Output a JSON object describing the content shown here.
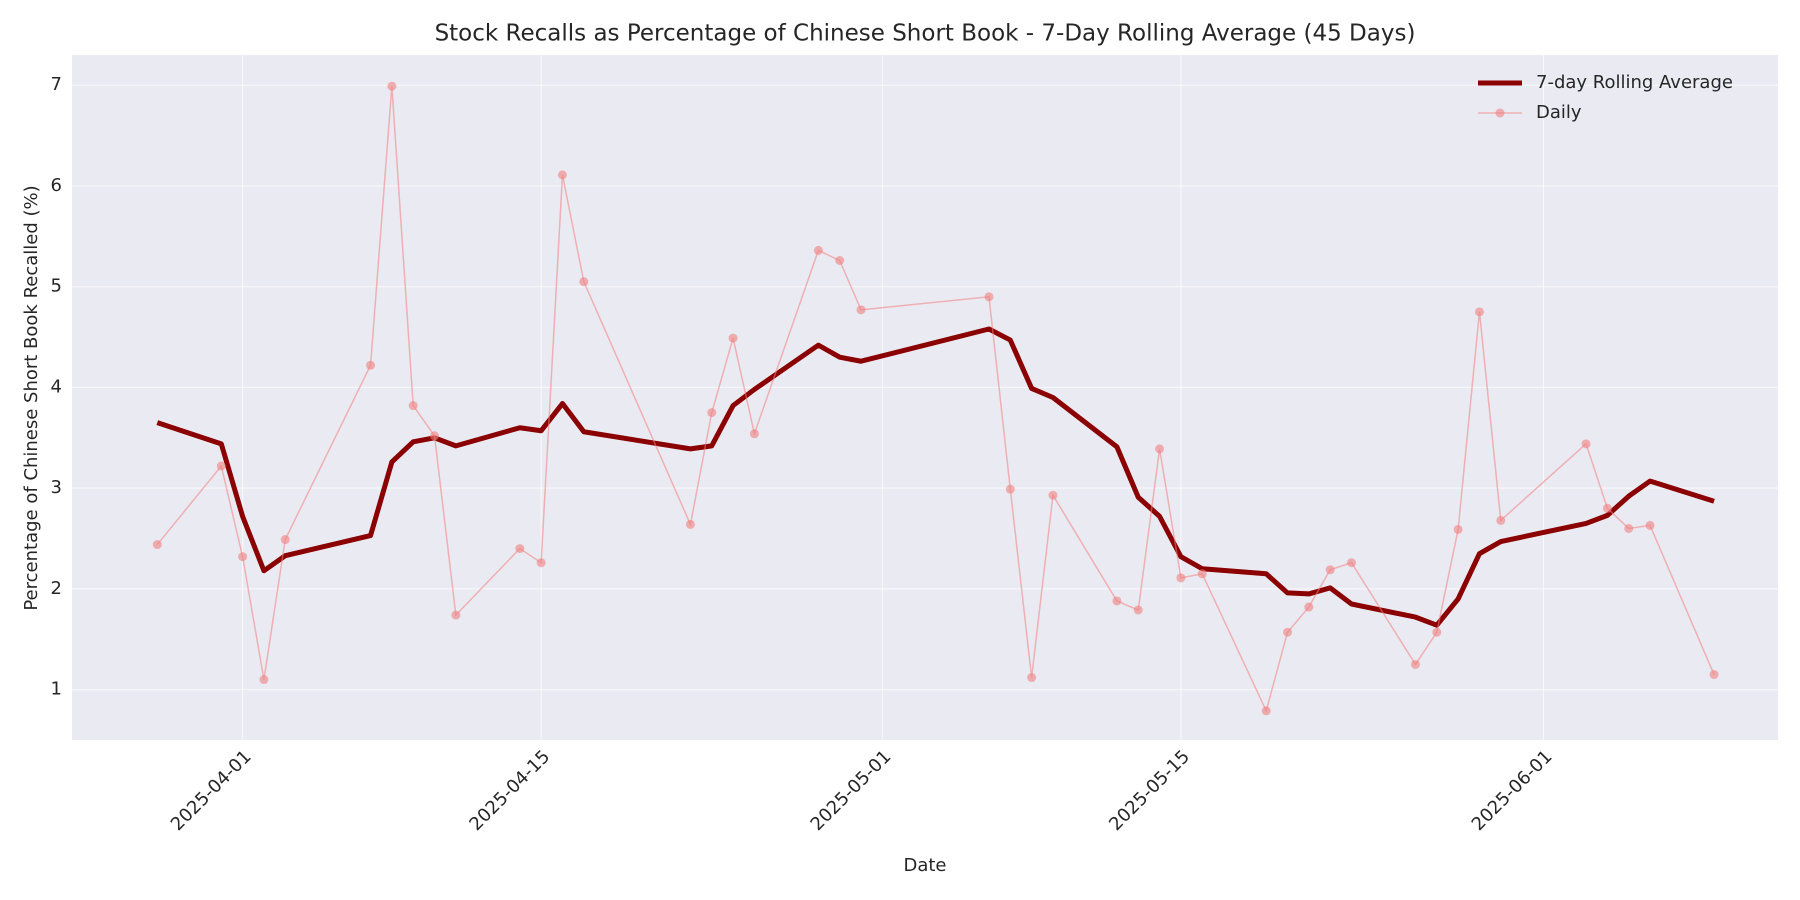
{
  "chart_data": {
    "type": "line",
    "title": "Stock Recalls as Percentage of Chinese Short Book - 7-Day Rolling Average (45 Days)",
    "x_label": "Date",
    "y_label": "Percentage of Chinese Short Book Recalled (%)",
    "x": [
      "2025-03-28",
      "2025-03-31",
      "2025-04-01",
      "2025-04-02",
      "2025-04-03",
      "2025-04-07",
      "2025-04-08",
      "2025-04-09",
      "2025-04-10",
      "2025-04-11",
      "2025-04-14",
      "2025-04-15",
      "2025-04-16",
      "2025-04-17",
      "2025-04-22",
      "2025-04-23",
      "2025-04-24",
      "2025-04-25",
      "2025-04-28",
      "2025-04-29",
      "2025-04-30",
      "2025-05-06",
      "2025-05-07",
      "2025-05-08",
      "2025-05-09",
      "2025-05-12",
      "2025-05-13",
      "2025-05-14",
      "2025-05-15",
      "2025-05-16",
      "2025-05-19",
      "2025-05-20",
      "2025-05-21",
      "2025-05-22",
      "2025-05-23",
      "2025-05-26",
      "2025-05-27",
      "2025-05-28",
      "2025-05-29",
      "2025-05-30",
      "2025-06-03",
      "2025-06-04",
      "2025-06-05",
      "2025-06-06",
      "2025-06-09"
    ],
    "series": [
      {
        "name": "7-day Rolling Average",
        "color": "#8b0000",
        "marker": false,
        "values": [
          3.65,
          3.44,
          2.72,
          2.18,
          2.33,
          2.53,
          3.26,
          3.46,
          3.5,
          3.42,
          3.6,
          3.57,
          3.84,
          3.56,
          3.39,
          3.42,
          3.82,
          3.98,
          4.42,
          4.3,
          4.26,
          4.58,
          4.47,
          3.99,
          3.9,
          3.41,
          2.91,
          2.72,
          2.32,
          2.2,
          2.15,
          1.96,
          1.95,
          2.01,
          1.85,
          1.72,
          1.64,
          1.9,
          2.35,
          2.47,
          2.65,
          2.73,
          2.92,
          3.07,
          2.87
        ]
      },
      {
        "name": "Daily",
        "color": "#f08080",
        "marker": true,
        "values": [
          2.44,
          3.22,
          2.32,
          1.1,
          2.49,
          4.22,
          6.99,
          3.82,
          3.52,
          1.74,
          2.4,
          2.26,
          6.11,
          5.05,
          2.64,
          3.75,
          4.49,
          3.54,
          5.36,
          5.26,
          4.77,
          4.9,
          2.99,
          1.12,
          2.93,
          1.88,
          1.79,
          3.39,
          2.11,
          2.15,
          0.79,
          1.57,
          1.82,
          2.19,
          2.26,
          1.25,
          1.57,
          2.59,
          4.75,
          2.68,
          3.44,
          2.8,
          2.6,
          2.63,
          1.15
        ]
      }
    ],
    "xlim": [
      "2025-03-24",
      "2025-06-12"
    ],
    "xticks": [
      "2025-04-01",
      "2025-04-15",
      "2025-05-01",
      "2025-05-15",
      "2025-06-01"
    ],
    "ylim": [
      0.5,
      7.3
    ],
    "yticks": [
      1,
      2,
      3,
      4,
      5,
      6,
      7
    ],
    "grid": true,
    "legend": "upper right"
  }
}
